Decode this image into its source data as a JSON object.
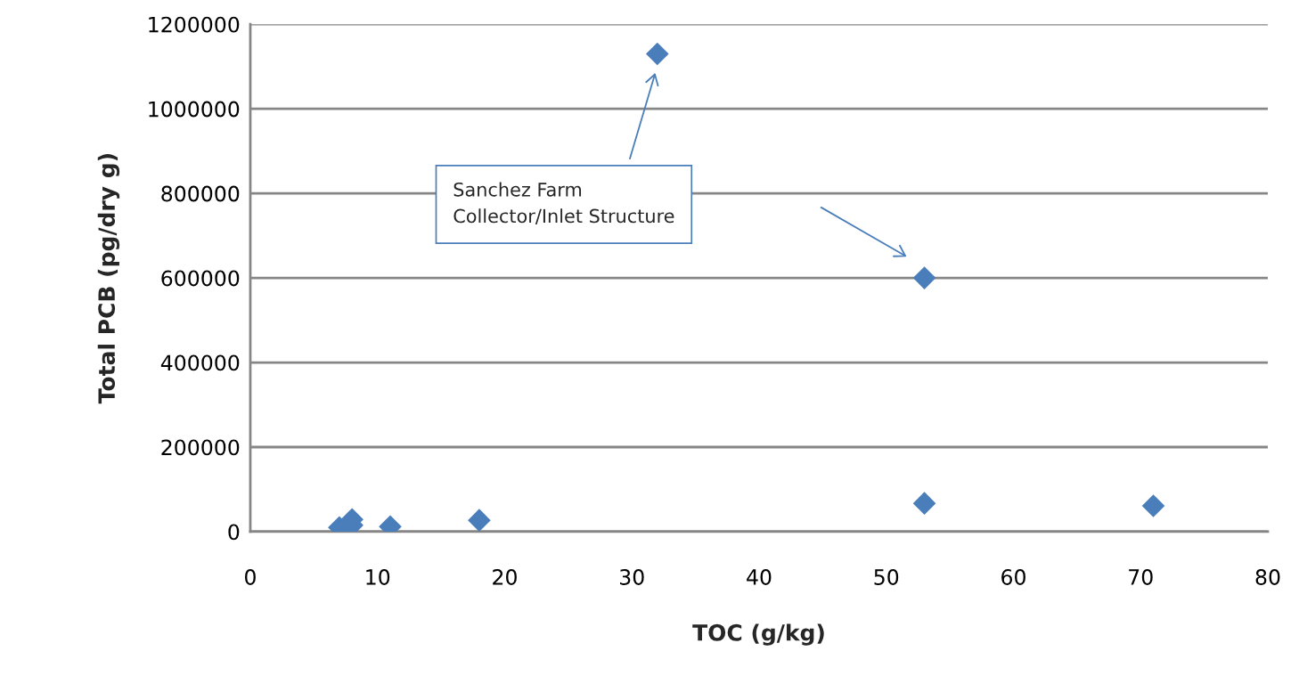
{
  "chart_data": {
    "type": "scatter",
    "xlabel": "TOC (g/kg)",
    "ylabel": "Total PCB (pg/dry g)",
    "x": [
      7,
      8,
      8,
      11,
      18,
      32,
      53,
      53,
      71
    ],
    "values": [
      10000,
      29000,
      15000,
      12000,
      27000,
      1130000,
      600000,
      67000,
      61000
    ],
    "color": "#4a7ebb",
    "marker": "diamond",
    "xlim": [
      0,
      80
    ],
    "xticks": [
      0,
      10,
      20,
      30,
      40,
      50,
      60,
      70,
      80
    ],
    "ylim": [
      0,
      1200000
    ],
    "yticks": [
      0,
      200000,
      400000,
      600000,
      800000,
      1000000,
      1200000
    ],
    "grid": "y",
    "annotations": [
      "Sanchez Farm\nCollector/Inlet Structure"
    ]
  }
}
